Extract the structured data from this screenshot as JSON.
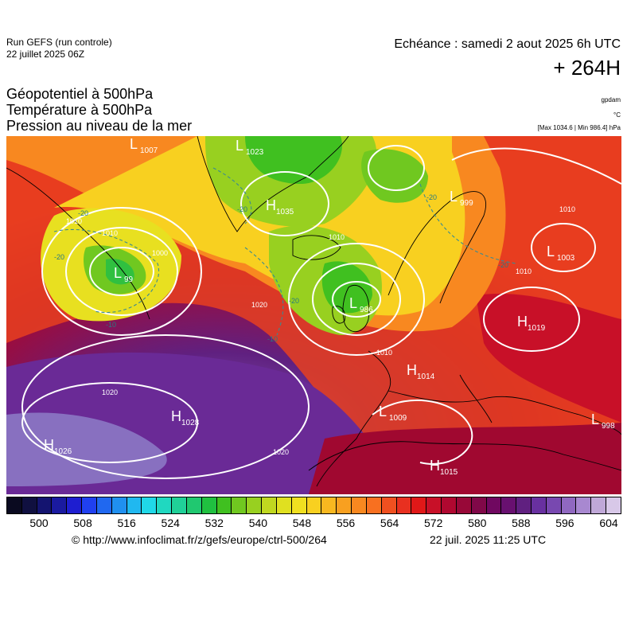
{
  "header": {
    "run_label": "Run GEFS (run controle)",
    "run_date": "22 juillet 2025 06Z",
    "echeance": "Echéance : samedi 2 aout 2025 6h UTC",
    "lead_time": "+ 264H",
    "params": [
      "Géopotentiel à 500hPa",
      "Température à 500hPa",
      "Pression au niveau de la mer"
    ],
    "unit_gpdam": "gpdam",
    "unit_celsius": "°C",
    "pressure_extremes": "[Max 1034.6 | Min 986.4] hPa"
  },
  "map": {
    "pressure_centers": [
      {
        "type": "L",
        "value": "1007"
      },
      {
        "type": "L",
        "value": "1023"
      },
      {
        "type": "H",
        "value": "1035"
      },
      {
        "type": "L",
        "value": "999"
      },
      {
        "type": "L",
        "value": "99"
      },
      {
        "type": "L",
        "value": "1003"
      },
      {
        "type": "L",
        "value": "986"
      },
      {
        "type": "H",
        "value": "1019"
      },
      {
        "type": "H",
        "value": "1014"
      },
      {
        "type": "H",
        "value": "1028"
      },
      {
        "type": "L",
        "value": "1009"
      },
      {
        "type": "L",
        "value": "998"
      },
      {
        "type": "H",
        "value": "1026"
      },
      {
        "type": "H",
        "value": "1015"
      }
    ],
    "isobar_labels": [
      "1010",
      "1010",
      "1000",
      "1010",
      "1020",
      "1020",
      "1020",
      "1010",
      "1010",
      "1010"
    ],
    "temperature_labels": [
      "-20",
      "-20",
      "-20",
      "-20",
      "-10",
      "-10",
      "-20",
      "-20"
    ]
  },
  "colorbar": {
    "labels": [
      "500",
      "508",
      "516",
      "524",
      "532",
      "540",
      "548",
      "556",
      "564",
      "572",
      "580",
      "588",
      "596",
      "604"
    ],
    "colors": [
      "#0a0a20",
      "#101040",
      "#141470",
      "#1a1aa0",
      "#1e1ed0",
      "#2040f0",
      "#2068f0",
      "#2090f0",
      "#20b8f0",
      "#20d8e8",
      "#20d8c0",
      "#20d098",
      "#20c870",
      "#20c040",
      "#40c020",
      "#70c820",
      "#98d020",
      "#c0d820",
      "#e0e020",
      "#f0e020",
      "#f8d020",
      "#f8b820",
      "#f8a020",
      "#f88820",
      "#f87020",
      "#f05020",
      "#e83020",
      "#e01818",
      "#c81028",
      "#b00830",
      "#980838",
      "#800848",
      "#700860",
      "#681070",
      "#602080",
      "#6830a0",
      "#7848b0",
      "#9068c0",
      "#a888d0",
      "#c0a8d8",
      "#d8c8e8"
    ],
    "tick_positions_note": ""
  },
  "footer": {
    "credit": "© http://www.infoclimat.fr/z/gefs/europe/ctrl-500/264",
    "timestamp": "22 juil. 2025 11:25 UTC"
  }
}
